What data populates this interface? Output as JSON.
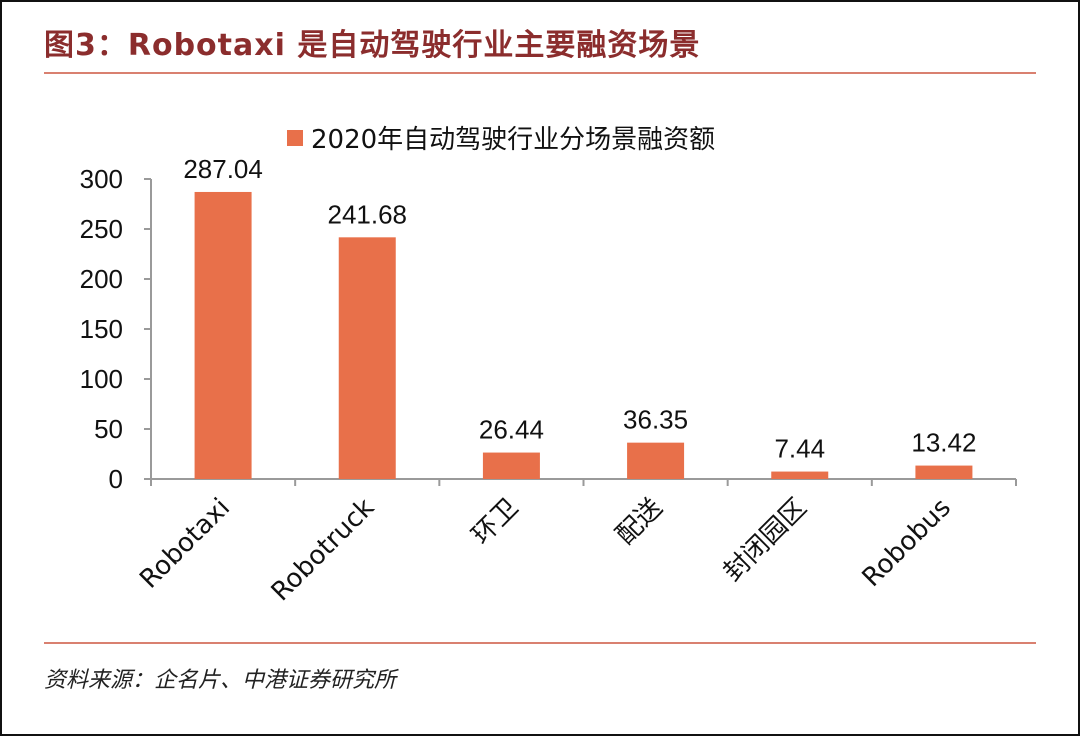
{
  "header": {
    "title": "图3：Robotaxi 是自动驾驶行业主要融资场景"
  },
  "footer": {
    "source": "资料来源：企名片、中港证券研究所"
  },
  "colors": {
    "bar": "#e8704a",
    "title": "#8b2d2d",
    "rule": "#d98070"
  },
  "chart_data": {
    "type": "bar",
    "categories": [
      "Robotaxi",
      "Robotruck",
      "环卫",
      "配送",
      "封闭园区",
      "Robobus"
    ],
    "series": [
      {
        "name": "2020年自动驾驶行业分场景融资额",
        "values": [
          287.04,
          241.68,
          26.44,
          36.35,
          7.44,
          13.42
        ]
      }
    ],
    "value_labels": [
      "287.04",
      "241.68",
      "26.44",
      "36.35",
      "7.44",
      "13.42"
    ],
    "yticks": [
      "0",
      "50",
      "100",
      "150",
      "200",
      "250",
      "300"
    ],
    "ylim": [
      0,
      300
    ],
    "legend": "top-center",
    "grid": false
  }
}
